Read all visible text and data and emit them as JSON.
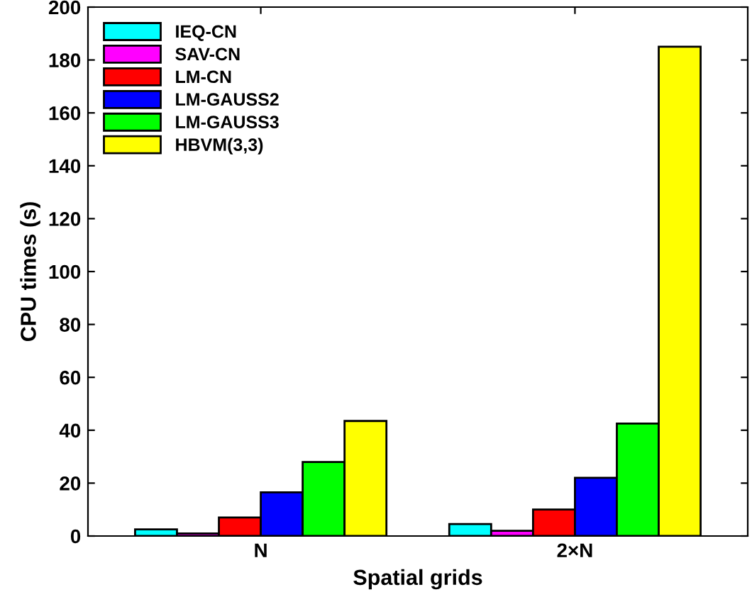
{
  "chart_data": {
    "type": "bar",
    "categories": [
      "N",
      "2×N"
    ],
    "xlabel": "Spatial grids",
    "ylabel": "CPU times (s)",
    "series": [
      {
        "name": "IEQ-CN",
        "color": "#00ffff",
        "values": [
          2.5,
          4.5
        ]
      },
      {
        "name": "SAV-CN",
        "color": "#ff00ff",
        "values": [
          1,
          2
        ]
      },
      {
        "name": "LM-CN",
        "color": "#ff0000",
        "values": [
          7,
          10
        ]
      },
      {
        "name": "LM-GAUSS2",
        "color": "#0000ff",
        "values": [
          16.5,
          22
        ]
      },
      {
        "name": "LM-GAUSS3",
        "color": "#00ff00",
        "values": [
          28,
          42.5
        ]
      },
      {
        "name": "HBVM(3,3)",
        "color": "#ffff00",
        "values": [
          43.5,
          185
        ]
      }
    ],
    "ylim": [
      0,
      200
    ],
    "yticks": [
      0,
      20,
      40,
      60,
      80,
      100,
      120,
      140,
      160,
      180,
      200
    ],
    "grid": false,
    "legend": "top left"
  }
}
